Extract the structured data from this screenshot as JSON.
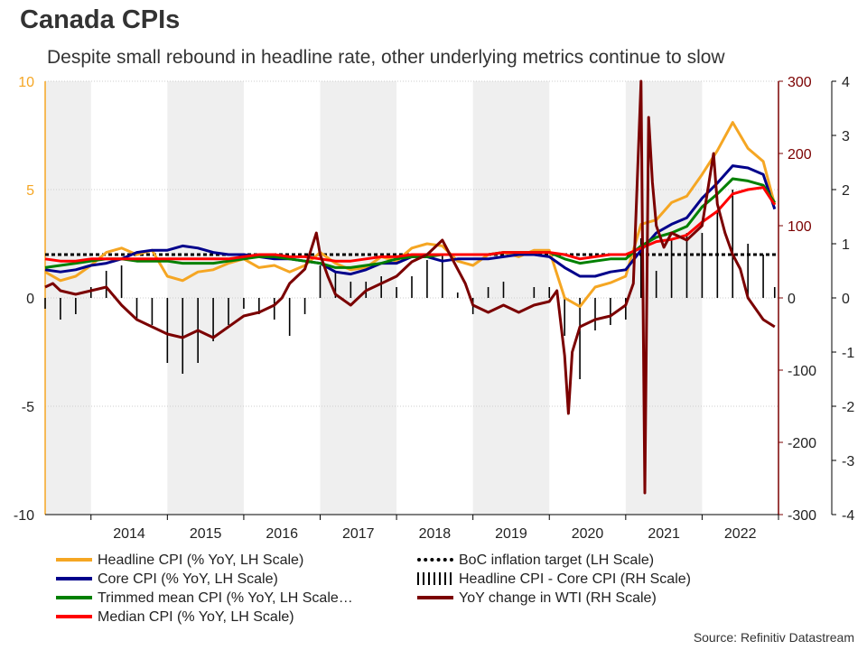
{
  "title": "Canada CPIs",
  "subtitle": "Despite small rebound in headline rate, other underlying metrics continue to slow",
  "source": "Source: Refinitiv Datastream",
  "colors": {
    "headline": "#f5a623",
    "core": "#00008b",
    "trimmed": "#008000",
    "median": "#ff0000",
    "target": "#000000",
    "diff": "#000000",
    "wti": "#7b0000",
    "left_axis": "#f5a623",
    "right_axis": "#7b0000",
    "shade": "#efefef"
  },
  "legend": [
    {
      "key": "headline",
      "label": "Headline CPI (% YoY, LH Scale)"
    },
    {
      "key": "target",
      "label": "BoC inflation target (LH Scale)"
    },
    {
      "key": "core",
      "label": "Core CPI (% YoY, LH Scale)"
    },
    {
      "key": "diff",
      "label": "Headline CPI - Core CPI (RH Scale)"
    },
    {
      "key": "trimmed",
      "label": "Trimmed mean CPI (% YoY, LH Scale…"
    },
    {
      "key": "wti",
      "label": "YoY change in WTI (RH Scale)"
    },
    {
      "key": "median",
      "label": "Median CPI (% YoY, LH Scale)"
    }
  ],
  "chart_data": {
    "type": "line",
    "x_range": [
      2013.4,
      2023.0
    ],
    "years": [
      "2014",
      "2015",
      "2016",
      "2017",
      "2018",
      "2019",
      "2020",
      "2021",
      "2022"
    ],
    "year_starts": [
      2013,
      2014,
      2015,
      2016,
      2017,
      2018,
      2019,
      2020,
      2021,
      2022,
      2023
    ],
    "y_left": {
      "range": [
        -10,
        10
      ],
      "ticks": [
        "10",
        "5",
        "0",
        "-5",
        "-10"
      ]
    },
    "y_right": {
      "range": [
        -300,
        300
      ],
      "ticks": [
        "300",
        "200",
        "100",
        "0",
        "-100",
        "-200",
        "-300"
      ]
    },
    "y_far_right": {
      "range": [
        -4,
        4
      ],
      "ticks": [
        "4",
        "3",
        "2",
        "1",
        "0",
        "-1",
        "-2",
        "-3",
        "-4"
      ]
    },
    "target_value": 2,
    "series": [
      {
        "key": "headline",
        "name": "Headline CPI (% YoY, LH Scale)",
        "axis": "left",
        "x": [
          2013.4,
          2013.6,
          2013.8,
          2014.0,
          2014.2,
          2014.4,
          2014.6,
          2014.8,
          2015.0,
          2015.2,
          2015.4,
          2015.6,
          2015.8,
          2016.0,
          2016.2,
          2016.4,
          2016.6,
          2016.8,
          2017.0,
          2017.2,
          2017.4,
          2017.6,
          2017.8,
          2018.0,
          2018.2,
          2018.4,
          2018.6,
          2018.8,
          2019.0,
          2019.2,
          2019.4,
          2019.6,
          2019.8,
          2020.0,
          2020.2,
          2020.4,
          2020.6,
          2020.8,
          2021.0,
          2021.2,
          2021.4,
          2021.6,
          2021.8,
          2022.0,
          2022.2,
          2022.4,
          2022.6,
          2022.8,
          2022.95
        ],
        "y": [
          1.2,
          0.8,
          1.0,
          1.5,
          2.1,
          2.3,
          2.0,
          2.2,
          1.0,
          0.8,
          1.2,
          1.3,
          1.6,
          1.8,
          1.4,
          1.5,
          1.2,
          1.5,
          2.1,
          1.6,
          1.3,
          1.4,
          1.9,
          1.7,
          2.3,
          2.5,
          2.4,
          1.7,
          1.5,
          2.0,
          2.1,
          1.9,
          2.2,
          2.2,
          0.0,
          -0.4,
          0.5,
          0.7,
          1.0,
          3.4,
          3.6,
          4.4,
          4.7,
          5.7,
          6.8,
          8.1,
          6.9,
          6.3,
          4.3
        ]
      },
      {
        "key": "core",
        "name": "Core CPI (% YoY, LH Scale)",
        "axis": "left",
        "x": [
          2013.4,
          2013.6,
          2013.8,
          2014.0,
          2014.2,
          2014.4,
          2014.6,
          2014.8,
          2015.0,
          2015.2,
          2015.4,
          2015.6,
          2015.8,
          2016.0,
          2016.2,
          2016.4,
          2016.6,
          2016.8,
          2017.0,
          2017.2,
          2017.4,
          2017.6,
          2017.8,
          2018.0,
          2018.2,
          2018.4,
          2018.6,
          2018.8,
          2019.0,
          2019.2,
          2019.4,
          2019.6,
          2019.8,
          2020.0,
          2020.2,
          2020.4,
          2020.6,
          2020.8,
          2021.0,
          2021.2,
          2021.4,
          2021.6,
          2021.8,
          2022.0,
          2022.2,
          2022.4,
          2022.6,
          2022.8,
          2022.95
        ],
        "y": [
          1.3,
          1.2,
          1.3,
          1.5,
          1.6,
          1.8,
          2.1,
          2.2,
          2.2,
          2.4,
          2.3,
          2.1,
          2.0,
          2.0,
          1.9,
          1.8,
          1.8,
          1.7,
          1.6,
          1.2,
          1.1,
          1.3,
          1.6,
          1.6,
          1.9,
          1.9,
          1.7,
          1.8,
          1.8,
          1.8,
          1.9,
          2.0,
          2.0,
          1.9,
          1.4,
          1.0,
          1.0,
          1.2,
          1.3,
          2.2,
          3.0,
          3.4,
          3.7,
          4.6,
          5.3,
          6.1,
          6.0,
          5.7,
          4.1
        ]
      },
      {
        "key": "trimmed",
        "name": "Trimmed mean CPI (% YoY, LH Scale…",
        "axis": "left",
        "x": [
          2013.4,
          2013.6,
          2013.8,
          2014.0,
          2014.2,
          2014.4,
          2014.6,
          2014.8,
          2015.0,
          2015.2,
          2015.4,
          2015.6,
          2015.8,
          2016.0,
          2016.2,
          2016.4,
          2016.6,
          2016.8,
          2017.0,
          2017.2,
          2017.4,
          2017.6,
          2017.8,
          2018.0,
          2018.2,
          2018.4,
          2018.6,
          2018.8,
          2019.0,
          2019.2,
          2019.4,
          2019.6,
          2019.8,
          2020.0,
          2020.2,
          2020.4,
          2020.6,
          2020.8,
          2021.0,
          2021.2,
          2021.4,
          2021.6,
          2021.8,
          2022.0,
          2022.2,
          2022.4,
          2022.6,
          2022.8,
          2022.95
        ],
        "y": [
          1.4,
          1.5,
          1.6,
          1.7,
          1.8,
          1.8,
          1.7,
          1.7,
          1.7,
          1.6,
          1.6,
          1.6,
          1.7,
          1.8,
          1.9,
          1.9,
          1.8,
          1.7,
          1.6,
          1.4,
          1.4,
          1.5,
          1.6,
          1.8,
          1.9,
          1.9,
          2.0,
          2.0,
          2.0,
          2.0,
          2.1,
          2.1,
          2.1,
          2.1,
          1.8,
          1.6,
          1.7,
          1.8,
          1.8,
          2.4,
          2.8,
          3.0,
          3.3,
          4.2,
          4.8,
          5.5,
          5.4,
          5.2,
          4.4
        ]
      },
      {
        "key": "median",
        "name": "Median CPI (% YoY, LH Scale)",
        "axis": "left",
        "x": [
          2013.4,
          2013.6,
          2013.8,
          2014.0,
          2014.2,
          2014.4,
          2014.6,
          2014.8,
          2015.0,
          2015.2,
          2015.4,
          2015.6,
          2015.8,
          2016.0,
          2016.2,
          2016.4,
          2016.6,
          2016.8,
          2017.0,
          2017.2,
          2017.4,
          2017.6,
          2017.8,
          2018.0,
          2018.2,
          2018.4,
          2018.6,
          2018.8,
          2019.0,
          2019.2,
          2019.4,
          2019.6,
          2019.8,
          2020.0,
          2020.2,
          2020.4,
          2020.6,
          2020.8,
          2021.0,
          2021.2,
          2021.4,
          2021.6,
          2021.8,
          2022.0,
          2022.2,
          2022.4,
          2022.6,
          2022.8,
          2022.95
        ],
        "y": [
          1.8,
          1.7,
          1.7,
          1.8,
          1.8,
          1.8,
          1.8,
          1.8,
          1.8,
          1.8,
          1.8,
          1.8,
          1.8,
          1.9,
          2.0,
          2.0,
          1.9,
          1.9,
          1.8,
          1.7,
          1.7,
          1.8,
          1.9,
          1.9,
          2.0,
          2.0,
          2.0,
          2.0,
          2.0,
          2.0,
          2.1,
          2.1,
          2.1,
          2.1,
          2.0,
          1.8,
          1.9,
          2.0,
          2.0,
          2.3,
          2.6,
          2.7,
          2.9,
          3.5,
          4.0,
          4.8,
          5.0,
          5.1,
          4.3
        ]
      },
      {
        "key": "wti",
        "name": "YoY change in WTI (RH Scale)",
        "axis": "right",
        "x": [
          2013.4,
          2013.5,
          2013.6,
          2013.8,
          2014.0,
          2014.2,
          2014.4,
          2014.5,
          2014.6,
          2014.8,
          2015.0,
          2015.2,
          2015.4,
          2015.6,
          2015.8,
          2016.0,
          2016.2,
          2016.4,
          2016.5,
          2016.6,
          2016.8,
          2016.95,
          2017.0,
          2017.1,
          2017.2,
          2017.4,
          2017.6,
          2017.8,
          2018.0,
          2018.2,
          2018.4,
          2018.5,
          2018.6,
          2018.8,
          2018.9,
          2019.0,
          2019.2,
          2019.4,
          2019.6,
          2019.8,
          2020.0,
          2020.1,
          2020.2,
          2020.25,
          2020.3,
          2020.4,
          2020.6,
          2020.8,
          2021.0,
          2021.1,
          2021.2,
          2021.25,
          2021.3,
          2021.35,
          2021.4,
          2021.5,
          2021.6,
          2021.8,
          2022.0,
          2022.15,
          2022.2,
          2022.3,
          2022.4,
          2022.5,
          2022.6,
          2022.8,
          2022.95
        ],
        "y": [
          15,
          20,
          10,
          5,
          10,
          15,
          -10,
          -20,
          -30,
          -40,
          -50,
          -55,
          -45,
          -55,
          -40,
          -25,
          -20,
          -10,
          0,
          20,
          40,
          90,
          60,
          30,
          5,
          -10,
          10,
          20,
          30,
          50,
          60,
          70,
          80,
          40,
          20,
          -10,
          -20,
          -10,
          -20,
          -10,
          -5,
          10,
          -80,
          -160,
          -75,
          -40,
          -30,
          -25,
          -10,
          20,
          300,
          -270,
          250,
          160,
          100,
          70,
          90,
          80,
          100,
          200,
          130,
          90,
          60,
          40,
          0,
          -30,
          -40
        ]
      },
      {
        "key": "diff",
        "name": "Headline CPI - Core CPI (RH Scale)",
        "axis": "far_right",
        "style": "bars",
        "x": [
          2013.4,
          2013.6,
          2013.8,
          2014.0,
          2014.2,
          2014.4,
          2014.6,
          2014.8,
          2015.0,
          2015.2,
          2015.4,
          2015.6,
          2015.8,
          2016.0,
          2016.2,
          2016.4,
          2016.6,
          2016.8,
          2017.0,
          2017.2,
          2017.4,
          2017.6,
          2017.8,
          2018.0,
          2018.2,
          2018.4,
          2018.6,
          2018.8,
          2019.0,
          2019.2,
          2019.4,
          2019.6,
          2019.8,
          2020.0,
          2020.2,
          2020.4,
          2020.6,
          2020.8,
          2021.0,
          2021.2,
          2021.4,
          2021.6,
          2021.8,
          2022.0,
          2022.2,
          2022.4,
          2022.6,
          2022.8,
          2022.95
        ],
        "y": [
          -0.2,
          -0.4,
          -0.3,
          0.2,
          0.5,
          0.6,
          -0.4,
          -0.5,
          -1.2,
          -1.4,
          -1.2,
          -0.8,
          -0.5,
          -0.2,
          -0.3,
          -0.4,
          -0.7,
          -0.3,
          0.6,
          0.5,
          0.3,
          0.3,
          0.4,
          0.2,
          0.4,
          0.7,
          0.8,
          0.1,
          -0.3,
          0.2,
          0.3,
          0.0,
          0.2,
          0.2,
          -0.7,
          -1.5,
          -0.6,
          -0.5,
          -0.4,
          1.1,
          0.5,
          1.1,
          1.2,
          1.2,
          1.6,
          2.0,
          1.0,
          0.8,
          0.2
        ]
      }
    ]
  }
}
